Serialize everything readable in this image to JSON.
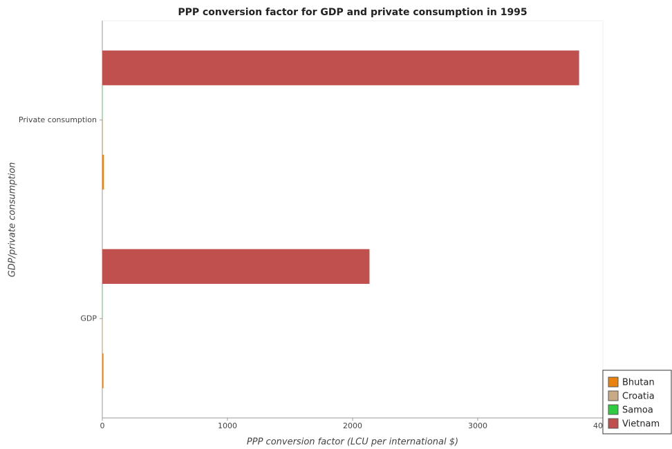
{
  "chart_data": {
    "type": "hbar",
    "title": "PPP conversion factor for GDP and private consumption in 1995",
    "x_label": "PPP conversion factor (LCU per international $)",
    "y_label": "GDP/private consumption",
    "categories": [
      "GDP",
      "Private consumption"
    ],
    "series": [
      {
        "name": "Bhutan",
        "color": "#e8820c",
        "values": [
          9,
          13
        ]
      },
      {
        "name": "Croatia",
        "color": "#c8ab85",
        "values": [
          3.5,
          4.5
        ]
      },
      {
        "name": "Samoa",
        "color": "#2ecc40",
        "values": [
          1.2,
          1.5
        ]
      },
      {
        "name": "Vietnam",
        "color": "#c0504d",
        "values": [
          2135,
          3810
        ]
      }
    ],
    "xlim": [
      0,
      4000
    ],
    "xticks": [
      0,
      1000,
      2000,
      3000,
      4000
    ],
    "legend": "lower right"
  }
}
